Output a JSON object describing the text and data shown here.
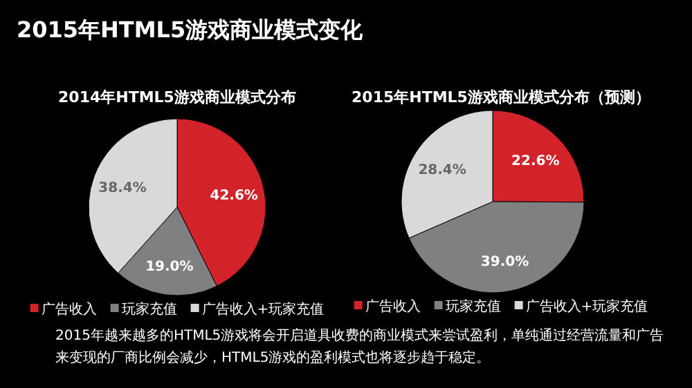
{
  "chart_data": [
    {
      "type": "pie",
      "title": "2014年HTML5游戏商业模式分布",
      "categories": [
        "广告收入",
        "玩家充值",
        "广告收入+玩家充值"
      ],
      "values": [
        42.6,
        19.0,
        38.4
      ],
      "value_labels": [
        "42.6%",
        "19.0%",
        "38.4%"
      ],
      "colors": [
        "#d2232a",
        "#808080",
        "#d9d9d9"
      ],
      "legend": "bottom",
      "annotations": [
        "2015年HTML5游戏商业模式变化",
        "2015年越来越多的HTML5游戏将会开启道具收费的商业模式来尝试盈利，单纯通过经营流量和广告来变现的厂商比例会减少，HTML5游戏的盈利模式也将逐步趋于稳定。"
      ]
    },
    {
      "type": "pie",
      "title": "2015年HTML5游戏商业模式分布（预测）",
      "categories": [
        "广告收入",
        "玩家充值",
        "广告收入+玩家充值"
      ],
      "values": [
        22.6,
        39.0,
        28.4
      ],
      "value_labels": [
        "22.6%",
        "39.0%",
        "28.4%"
      ],
      "colors": [
        "#d2232a",
        "#808080",
        "#d9d9d9"
      ],
      "legend": "bottom"
    }
  ]
}
